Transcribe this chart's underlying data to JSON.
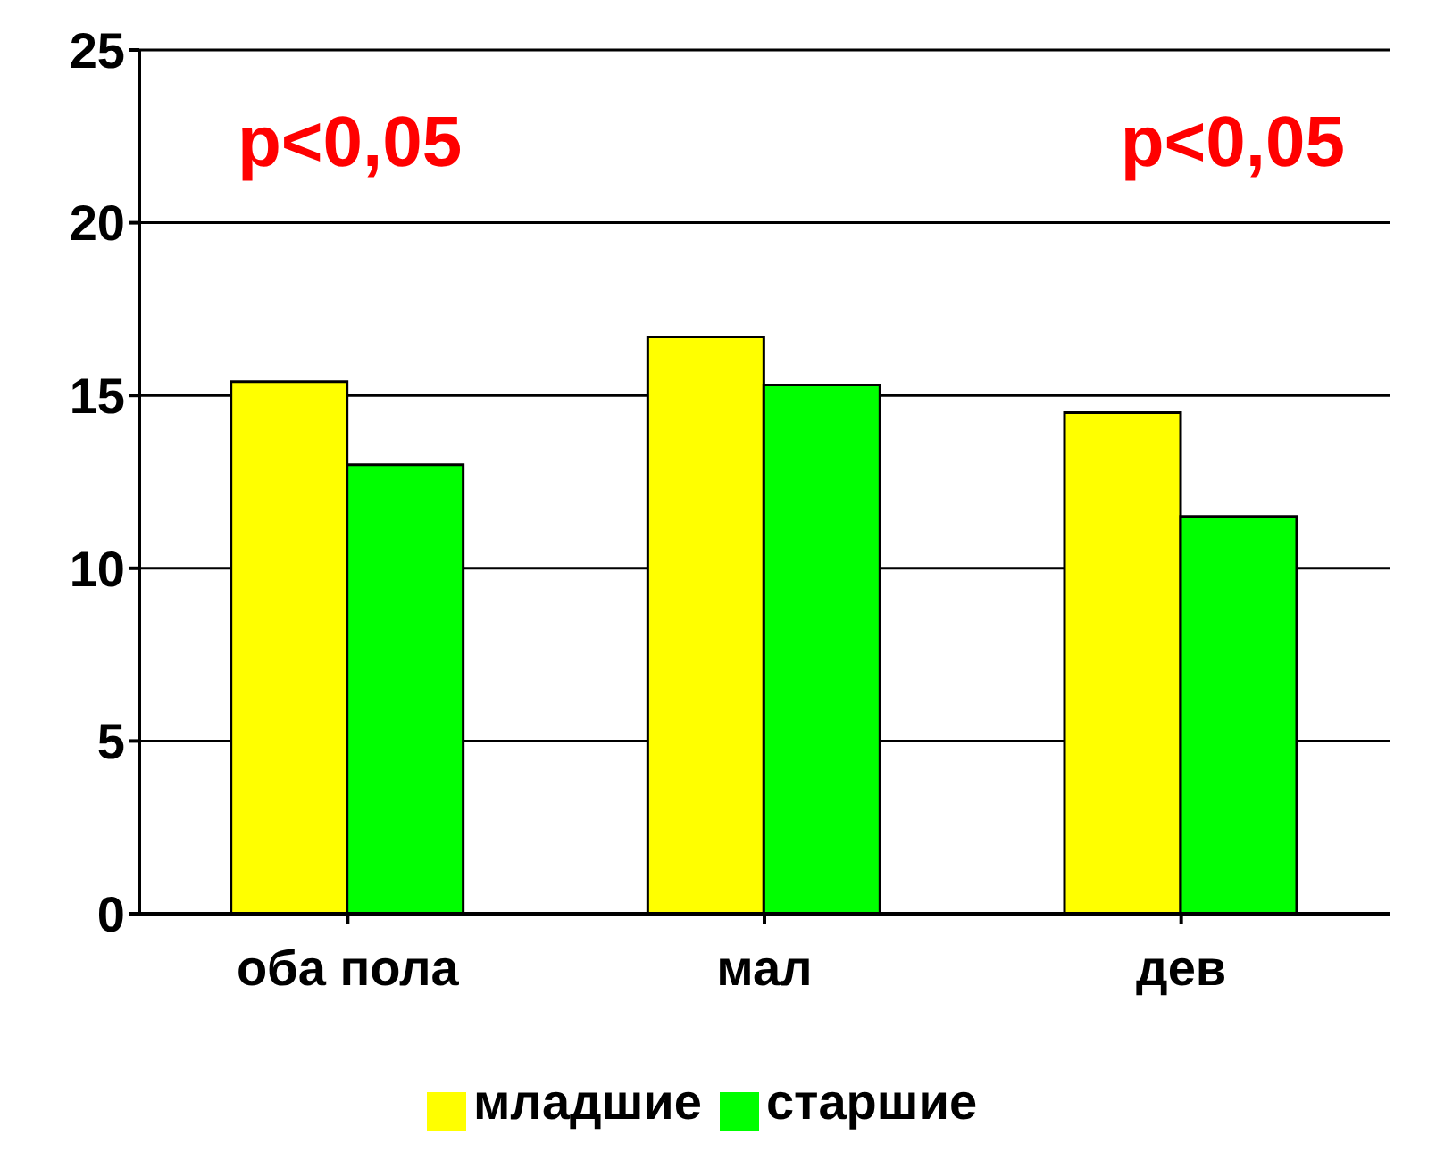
{
  "chart_data": {
    "type": "bar",
    "categories": [
      "оба пола",
      "мал",
      "дев"
    ],
    "series": [
      {
        "name": "младшие",
        "color": "#ffff00",
        "values": [
          15.4,
          16.7,
          14.5
        ]
      },
      {
        "name": "старшие",
        "color": "#00ff00",
        "values": [
          13.0,
          15.3,
          11.5
        ]
      }
    ],
    "ylim": [
      0,
      25
    ],
    "yticks": [
      0,
      5,
      10,
      15,
      20,
      25
    ],
    "grid": "y",
    "legend": "bottom",
    "annotations": [
      "p<0,05",
      "p<0,05"
    ]
  }
}
